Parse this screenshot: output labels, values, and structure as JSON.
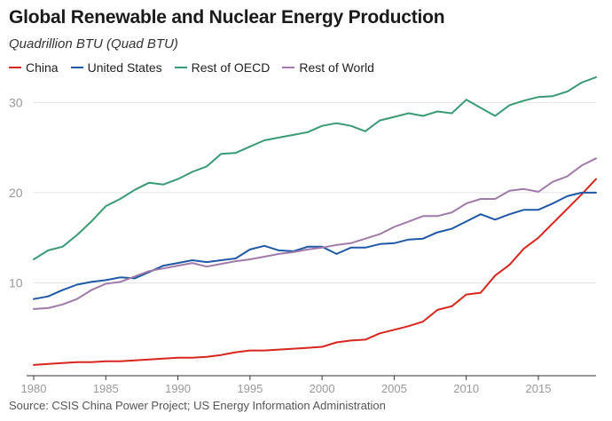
{
  "header": {
    "title": "Global Renewable and Nuclear Energy Production",
    "subtitle": "Quadrillion BTU (Quad BTU)"
  },
  "footer": {
    "source": "Source: CSIS China Power Project; US Energy Information Administration"
  },
  "colors": {
    "china": "#d7261e",
    "us": "#1f58a6",
    "oecd": "#3a9a73",
    "world": "#a07aa8",
    "grid": "#e3e3e3",
    "tick": "#999999"
  },
  "chart_data": {
    "type": "line",
    "title": "Global Renewable and Nuclear Energy Production",
    "subtitle": "Quadrillion BTU (Quad BTU)",
    "xlabel": "",
    "ylabel": "",
    "xlim": [
      1980,
      2019
    ],
    "ylim": [
      0,
      32
    ],
    "grid": true,
    "legend": "top-left",
    "x_ticks": [
      1980,
      1985,
      1990,
      1995,
      2000,
      2005,
      2010,
      2015
    ],
    "x_tick_labels": [
      "1980",
      "1985",
      "1990",
      "1995",
      "2000",
      "2005",
      "2010",
      "2015"
    ],
    "y_ticks": [
      10,
      20,
      30
    ],
    "y_tick_labels": [
      "10",
      "20",
      "30"
    ],
    "x": [
      1980,
      1981,
      1982,
      1983,
      1984,
      1985,
      1986,
      1987,
      1988,
      1989,
      1990,
      1991,
      1992,
      1993,
      1994,
      1995,
      1996,
      1997,
      1998,
      1999,
      2000,
      2001,
      2002,
      2003,
      2004,
      2005,
      2006,
      2007,
      2008,
      2009,
      2010,
      2011,
      2012,
      2013,
      2014,
      2015,
      2016,
      2017,
      2018,
      2019
    ],
    "series": [
      {
        "name": "China",
        "color": "#d7261e",
        "values": [
          0.9,
          1.0,
          1.1,
          1.2,
          1.2,
          1.3,
          1.3,
          1.4,
          1.5,
          1.6,
          1.7,
          1.7,
          1.8,
          2.0,
          2.3,
          2.5,
          2.5,
          2.6,
          2.7,
          2.8,
          2.9,
          3.4,
          3.6,
          3.7,
          4.4,
          4.8,
          5.2,
          5.7,
          7.0,
          7.4,
          8.7,
          8.9,
          10.8,
          12.0,
          13.8,
          15.0,
          16.6,
          18.2,
          19.8,
          21.5
        ]
      },
      {
        "name": "United States",
        "color": "#1f58a6",
        "values": [
          8.2,
          8.5,
          9.2,
          9.8,
          10.1,
          10.3,
          10.6,
          10.5,
          11.2,
          11.9,
          12.2,
          12.5,
          12.3,
          12.5,
          12.7,
          13.7,
          14.1,
          13.6,
          13.5,
          14.0,
          14.0,
          13.2,
          13.9,
          13.9,
          14.3,
          14.4,
          14.8,
          14.9,
          15.6,
          16.0,
          16.8,
          17.6,
          17.0,
          17.6,
          18.1,
          18.1,
          18.8,
          19.6,
          20.0,
          20.0
        ]
      },
      {
        "name": "Rest of OECD",
        "color": "#3a9a73",
        "values": [
          12.6,
          13.6,
          14.0,
          15.3,
          16.8,
          18.5,
          19.3,
          20.3,
          21.1,
          20.9,
          21.5,
          22.3,
          22.9,
          24.3,
          24.4,
          25.1,
          25.8,
          26.1,
          26.4,
          26.7,
          27.4,
          27.7,
          27.4,
          26.8,
          28.0,
          28.4,
          28.8,
          28.5,
          29.0,
          28.8,
          30.3,
          29.4,
          28.5,
          29.7,
          30.2,
          30.6,
          30.7,
          31.2,
          32.2,
          32.8
        ]
      },
      {
        "name": "Rest of World",
        "color": "#a07aa8",
        "values": [
          7.1,
          7.2,
          7.6,
          8.2,
          9.2,
          9.9,
          10.1,
          10.7,
          11.3,
          11.6,
          11.9,
          12.2,
          11.8,
          12.1,
          12.4,
          12.6,
          12.9,
          13.2,
          13.4,
          13.7,
          13.9,
          14.2,
          14.4,
          14.9,
          15.4,
          16.2,
          16.8,
          17.4,
          17.4,
          17.8,
          18.8,
          19.3,
          19.3,
          20.2,
          20.4,
          20.1,
          21.2,
          21.8,
          23.0,
          23.8
        ]
      }
    ]
  }
}
